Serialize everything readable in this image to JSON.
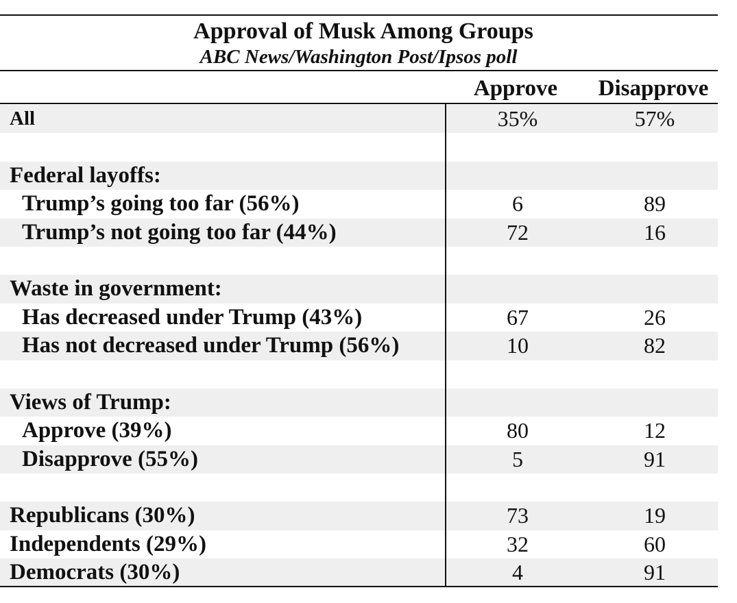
{
  "title": "Approval of Musk Among Groups",
  "subtitle": "ABC News/Washington Post/Ipsos poll",
  "columns": [
    "Approve",
    "Disapprove"
  ],
  "chart_data": {
    "type": "table",
    "title": "Approval of Musk Among Groups",
    "subtitle": "ABC News/Washington Post/Ipsos poll",
    "columns": [
      "Approve",
      "Disapprove"
    ],
    "rows": [
      {
        "label": "All",
        "approve": "35%",
        "disapprove": "57%",
        "level": 0
      },
      {
        "label": "",
        "approve": "",
        "disapprove": "",
        "level": 0
      },
      {
        "label": "Federal layoffs:",
        "approve": "",
        "disapprove": "",
        "level": 0
      },
      {
        "label": "Trump’s going too far (56%)",
        "approve": "6",
        "disapprove": "89",
        "level": 1
      },
      {
        "label": "Trump’s not going too far (44%)",
        "approve": "72",
        "disapprove": "16",
        "level": 1
      },
      {
        "label": "",
        "approve": "",
        "disapprove": "",
        "level": 0
      },
      {
        "label": "Waste in government:",
        "approve": "",
        "disapprove": "",
        "level": 0
      },
      {
        "label": "Has decreased under Trump (43%)",
        "approve": "67",
        "disapprove": "26",
        "level": 1
      },
      {
        "label": "Has not decreased under Trump (56%)",
        "approve": "10",
        "disapprove": "82",
        "level": 1
      },
      {
        "label": "",
        "approve": "",
        "disapprove": "",
        "level": 0
      },
      {
        "label": "Views of Trump:",
        "approve": "",
        "disapprove": "",
        "level": 0
      },
      {
        "label": "Approve (39%)",
        "approve": "80",
        "disapprove": "12",
        "level": 1
      },
      {
        "label": "Disapprove (55%)",
        "approve": "5",
        "disapprove": "91",
        "level": 1
      },
      {
        "label": "",
        "approve": "",
        "disapprove": "",
        "level": 0
      },
      {
        "label": "Republicans (30%)",
        "approve": "73",
        "disapprove": "19",
        "level": 0
      },
      {
        "label": "Independents (29%)",
        "approve": "32",
        "disapprove": "60",
        "level": 0
      },
      {
        "label": "Democrats (30%)",
        "approve": "4",
        "disapprove": "91",
        "level": 0
      }
    ]
  }
}
